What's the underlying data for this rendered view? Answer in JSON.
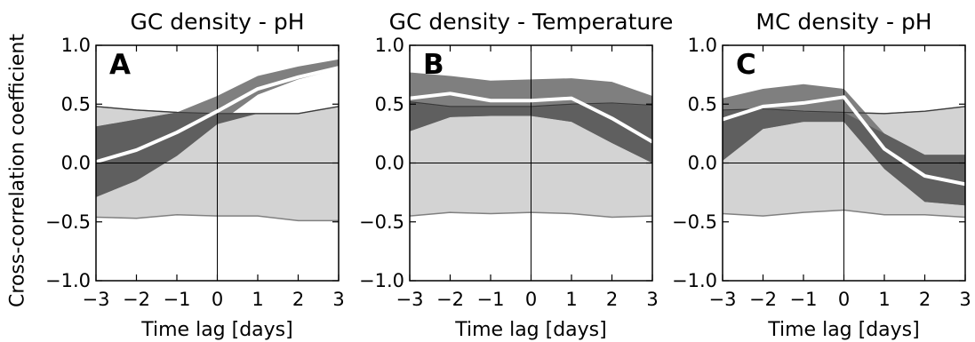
{
  "figure": {
    "ylabel": "Cross-correlation coefficient",
    "colors": {
      "null_band": "#d3d3d3",
      "null_edge": "#808080",
      "ci_band": "#7f7f7f",
      "ci_overlap": "#5f5f5f",
      "mean_line": "#ffffff",
      "threshold_line": "#3a3a3a",
      "axes": "#000000"
    }
  },
  "chart_data": [
    {
      "type": "line",
      "panel_letter": "A",
      "title": "GC density - pH",
      "xlabel": "Time lag [days]",
      "x": [
        -3,
        -2,
        -1,
        0,
        1,
        2,
        3
      ],
      "xticks": [
        "−3",
        "−2",
        "−1",
        "0",
        "1",
        "2",
        "3"
      ],
      "yticks": [
        "−1.0",
        "−0.5",
        "0.0",
        "0.5",
        "1.0"
      ],
      "xlim": [
        -3,
        3
      ],
      "ylim": [
        -1.0,
        1.0
      ],
      "series": [
        {
          "role": "mean",
          "values": [
            0.01,
            0.11,
            0.26,
            0.44,
            0.63,
            0.73,
            0.81
          ]
        },
        {
          "role": "ci_upper",
          "values": [
            0.31,
            0.37,
            0.43,
            0.57,
            0.74,
            0.82,
            0.88
          ]
        },
        {
          "role": "ci_lower",
          "values": [
            -0.29,
            -0.15,
            0.06,
            0.33,
            0.58,
            0.71,
            0.8
          ]
        },
        {
          "role": "null_upper",
          "values": [
            0.48,
            0.45,
            0.43,
            0.42,
            0.42,
            0.42,
            0.48
          ]
        },
        {
          "role": "null_lower",
          "values": [
            -0.46,
            -0.47,
            -0.44,
            -0.45,
            -0.45,
            -0.49,
            -0.49
          ]
        },
        {
          "role": "threshold",
          "values": [
            0.48,
            0.45,
            0.43,
            0.42,
            0.42,
            0.42,
            0.48
          ]
        }
      ]
    },
    {
      "type": "line",
      "panel_letter": "B",
      "title": "GC density - Temperature",
      "xlabel": "Time lag [days]",
      "x": [
        -3,
        -2,
        -1,
        0,
        1,
        2,
        3
      ],
      "xticks": [
        "−3",
        "−2",
        "−1",
        "0",
        "1",
        "2",
        "3"
      ],
      "yticks": [
        "−1.0",
        "−0.5",
        "0.0",
        "0.5",
        "1.0"
      ],
      "xlim": [
        -3,
        3
      ],
      "ylim": [
        -1.0,
        1.0
      ],
      "series": [
        {
          "role": "mean",
          "values": [
            0.55,
            0.59,
            0.53,
            0.53,
            0.55,
            0.38,
            0.18
          ]
        },
        {
          "role": "ci_upper",
          "values": [
            0.77,
            0.74,
            0.7,
            0.71,
            0.72,
            0.69,
            0.57
          ]
        },
        {
          "role": "ci_lower",
          "values": [
            0.27,
            0.39,
            0.4,
            0.4,
            0.35,
            0.17,
            0.0
          ]
        },
        {
          "role": "null_upper",
          "values": [
            0.52,
            0.48,
            0.48,
            0.48,
            0.5,
            0.51,
            0.49
          ]
        },
        {
          "role": "null_lower",
          "values": [
            -0.45,
            -0.42,
            -0.43,
            -0.42,
            -0.43,
            -0.46,
            -0.45
          ]
        },
        {
          "role": "threshold",
          "values": [
            0.52,
            0.48,
            0.48,
            0.48,
            0.5,
            0.51,
            0.49
          ]
        }
      ]
    },
    {
      "type": "line",
      "panel_letter": "C",
      "title": "MC density - pH",
      "xlabel": "Time lag [days]",
      "x": [
        -3,
        -2,
        -1,
        0,
        1,
        2,
        3
      ],
      "xticks": [
        "−3",
        "−2",
        "−1",
        "0",
        "1",
        "2",
        "3"
      ],
      "yticks": [
        "−1.0",
        "−0.5",
        "0.0",
        "0.5",
        "1.0"
      ],
      "xlim": [
        -3,
        3
      ],
      "ylim": [
        -1.0,
        1.0
      ],
      "series": [
        {
          "role": "mean",
          "values": [
            0.37,
            0.48,
            0.51,
            0.56,
            0.12,
            -0.11,
            -0.18
          ]
        },
        {
          "role": "ci_upper",
          "values": [
            0.55,
            0.63,
            0.67,
            0.63,
            0.25,
            0.07,
            0.07
          ]
        },
        {
          "role": "ci_lower",
          "values": [
            0.02,
            0.29,
            0.35,
            0.35,
            -0.05,
            -0.33,
            -0.36
          ]
        },
        {
          "role": "null_upper",
          "values": [
            0.45,
            0.46,
            0.44,
            0.43,
            0.42,
            0.44,
            0.48
          ]
        },
        {
          "role": "null_lower",
          "values": [
            -0.43,
            -0.45,
            -0.42,
            -0.4,
            -0.44,
            -0.44,
            -0.46
          ]
        },
        {
          "role": "threshold",
          "values": [
            0.45,
            0.46,
            0.44,
            0.43,
            0.42,
            0.44,
            0.48
          ]
        }
      ]
    }
  ]
}
